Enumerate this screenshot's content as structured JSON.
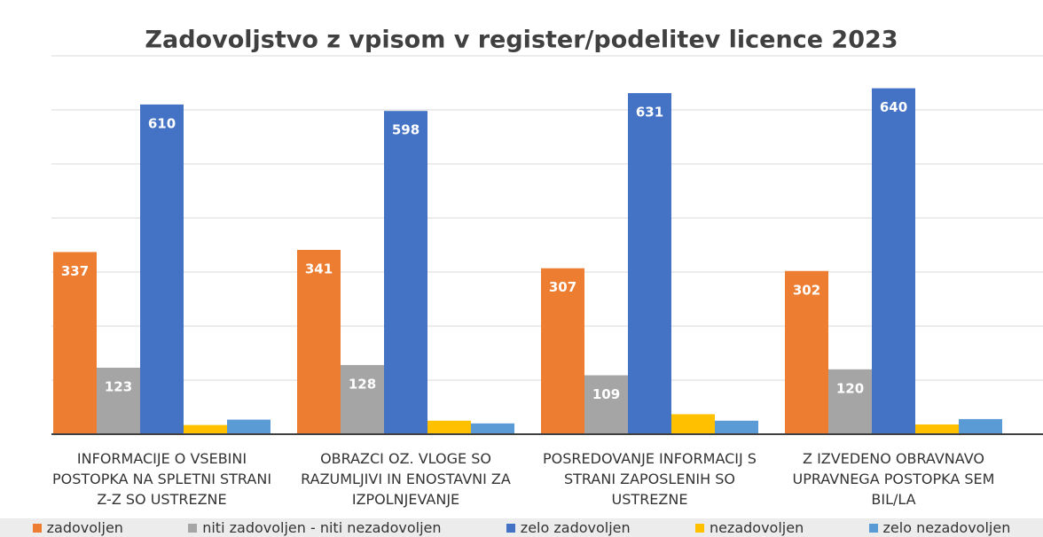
{
  "chart_data": {
    "type": "bar",
    "title": "Zadovoljstvo z vpisom v register/podelitev licence 2023",
    "categories": [
      "INFORMACIJE O VSEBINI POSTOPKA NA SPLETNI STRANI Z-Z SO USTREZNE",
      "OBRAZCI OZ. VLOGE SO RAZUMLJIVI IN ENOSTAVNI ZA IZPOLNJEVANJE",
      "POSREDOVANJE INFORMACIJ S STRANI ZAPOSLENIH SO USTREZNE",
      "Z IZVEDENO OBRAVNAVO UPRAVNEGA POSTOPKA SEM BIL/LA"
    ],
    "series": [
      {
        "name": "zadovoljen",
        "color": "#ed7d31",
        "values": [
          337,
          341,
          307,
          302
        ]
      },
      {
        "name": "niti zadovoljen - niti nezadovoljen",
        "color": "#a5a5a5",
        "values": [
          123,
          128,
          109,
          120
        ]
      },
      {
        "name": "zelo zadovoljen",
        "color": "#4472c4",
        "values": [
          610,
          598,
          631,
          640
        ]
      },
      {
        "name": "nezadovoljen",
        "color": "#ffc000",
        "values": [
          17,
          25,
          37,
          18
        ]
      },
      {
        "name": "zelo nezadovoljen",
        "color": "#5b9bd5",
        "values": [
          27,
          20,
          25,
          28
        ]
      }
    ],
    "ylim": [
      0,
      700
    ],
    "yticks": [
      0,
      100,
      200,
      300,
      400,
      500,
      600,
      700
    ],
    "grid": true,
    "legend": "bottom"
  }
}
